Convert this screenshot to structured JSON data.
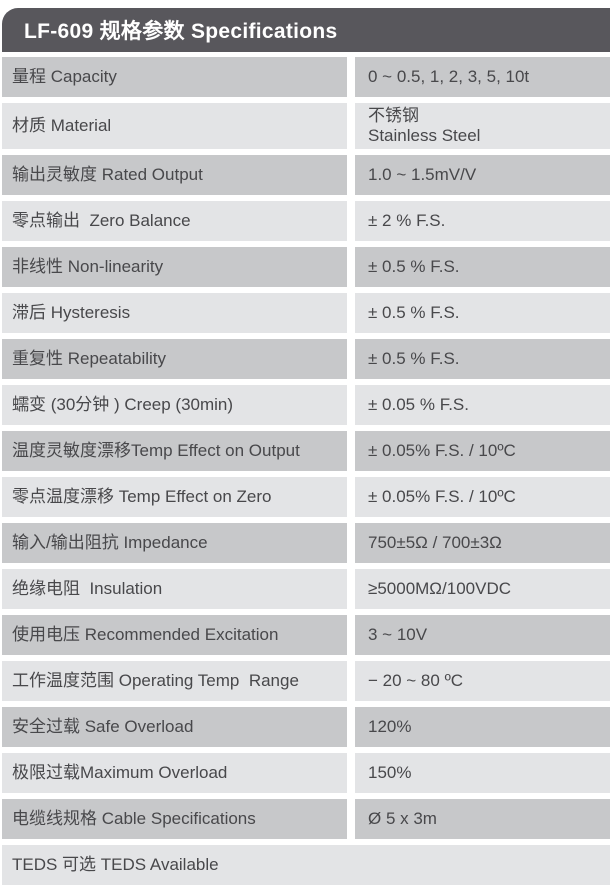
{
  "header": {
    "title": "LF-609 规格参数 Specifications"
  },
  "table": {
    "rows": [
      {
        "label": "量程 Capacity",
        "value": "0 ~ 0.5, 1, 2, 3, 5, 10t",
        "shade": "dark",
        "full_width": false
      },
      {
        "label": "材质 Material",
        "value": "不锈钢\nStainless Steel",
        "shade": "light",
        "full_width": false
      },
      {
        "label": "输出灵敏度 Rated Output",
        "value": "1.0 ~ 1.5mV/V",
        "shade": "dark",
        "full_width": false
      },
      {
        "label": "零点输出  Zero Balance",
        "value": "± 2 % F.S.",
        "shade": "light",
        "full_width": false
      },
      {
        "label": "非线性 Non-linearity",
        "value": "± 0.5 % F.S.",
        "shade": "dark",
        "full_width": false
      },
      {
        "label": "滞后 Hysteresis",
        "value": "± 0.5 % F.S.",
        "shade": "light",
        "full_width": false
      },
      {
        "label": "重复性 Repeatability",
        "value": "± 0.5 % F.S.",
        "shade": "dark",
        "full_width": false
      },
      {
        "label": "蠕变 (30分钟 ) Creep (30min)",
        "value": "± 0.05 % F.S.",
        "shade": "light",
        "full_width": false
      },
      {
        "label": "温度灵敏度漂移Temp Effect on Output",
        "value": "± 0.05% F.S. / 10ºC",
        "shade": "dark",
        "full_width": false
      },
      {
        "label": "零点温度漂移 Temp Effect on Zero",
        "value": "± 0.05% F.S. / 10ºC",
        "shade": "light",
        "full_width": false
      },
      {
        "label": "输入/输出阻抗 Impedance",
        "value": "750±5Ω / 700±3Ω",
        "shade": "dark",
        "full_width": false
      },
      {
        "label": "绝缘电阻  Insulation",
        "value": "≥5000MΩ/100VDC",
        "shade": "light",
        "full_width": false
      },
      {
        "label": "使用电压 Recommended Excitation",
        "value": "3 ~ 10V",
        "shade": "dark",
        "full_width": false
      },
      {
        "label": "工作温度范围 Operating Temp  Range",
        "value": "− 20 ~ 80 ºC",
        "shade": "light",
        "full_width": false
      },
      {
        "label": "安全过载 Safe Overload",
        "value": "120%",
        "shade": "dark",
        "full_width": false
      },
      {
        "label": "极限过载Maximum Overload",
        "value": "150%",
        "shade": "light",
        "full_width": false
      },
      {
        "label": "电缆线规格 Cable Specifications",
        "value": "Ø 5 x 3m",
        "shade": "dark",
        "full_width": false
      },
      {
        "label": "TEDS 可选 TEDS Available",
        "value": "",
        "shade": "light",
        "full_width": true
      }
    ]
  },
  "colors": {
    "header_bg": "#58575c",
    "header_text": "#ffffff",
    "row_dark": "#c7c8ca",
    "row_light": "#e3e4e6",
    "text": "#48484b",
    "page_bg": "#ffffff"
  }
}
